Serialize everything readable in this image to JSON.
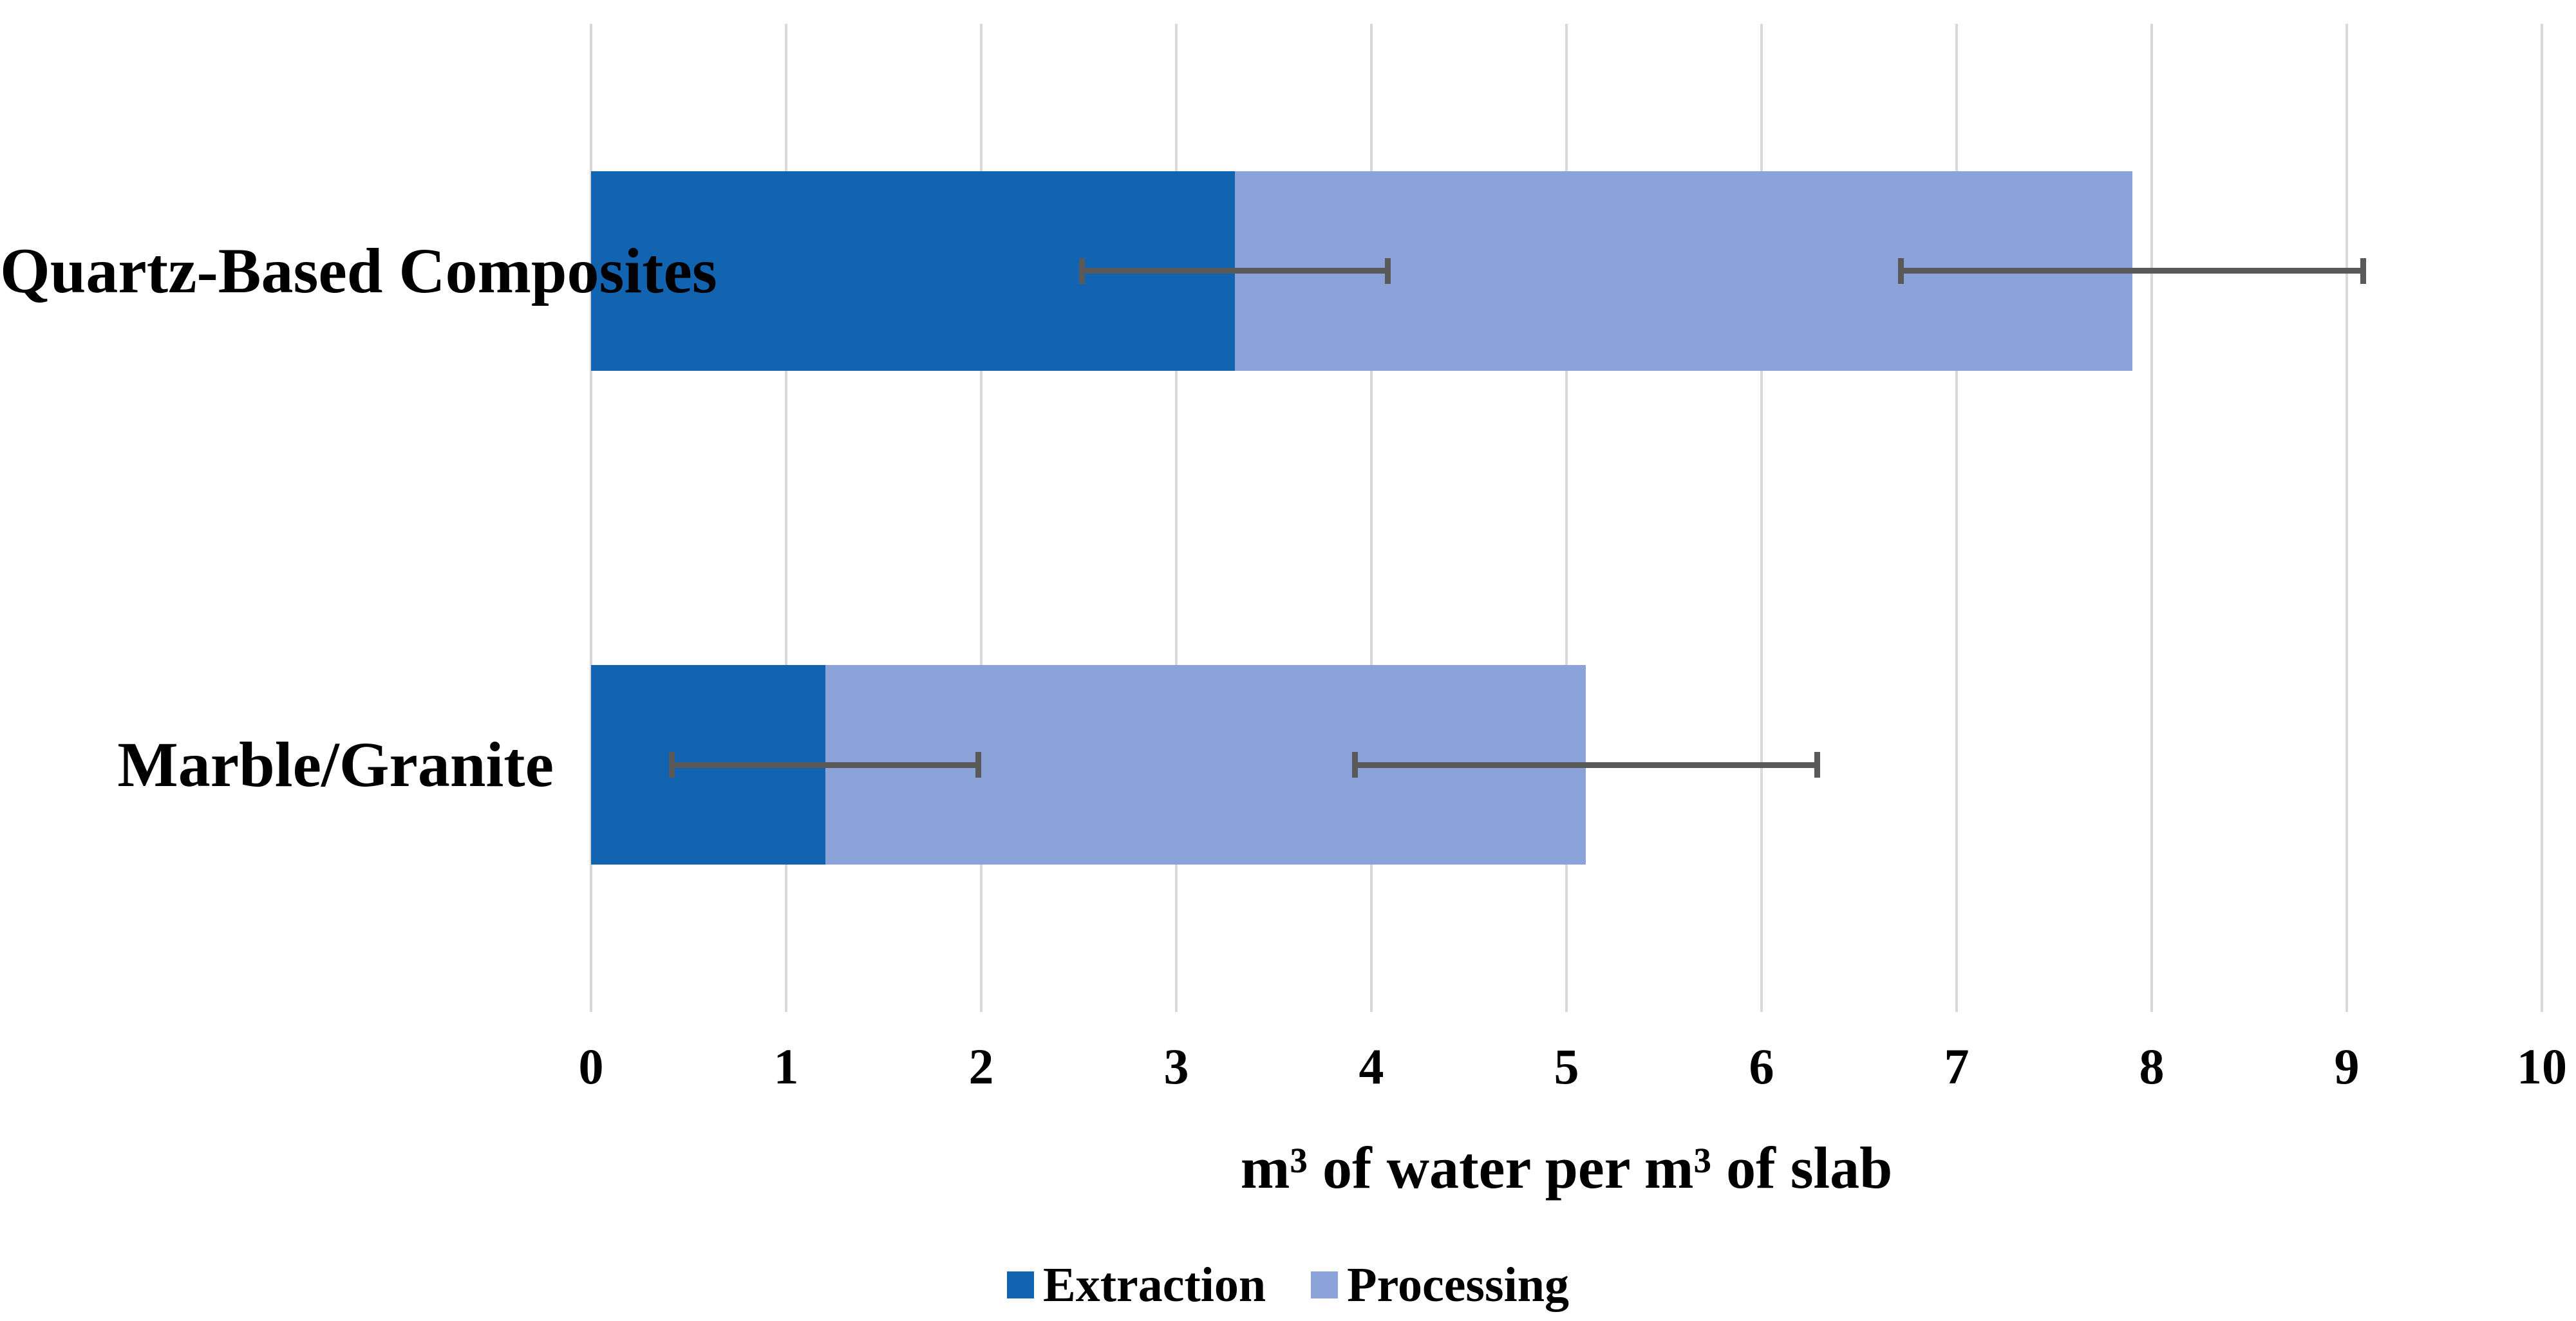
{
  "chart_data": {
    "type": "bar",
    "orientation": "horizontal",
    "stacked": true,
    "title": "",
    "categories": [
      "Quartz-Based Composites",
      "Marble/Granite"
    ],
    "series": [
      {
        "name": "Extraction",
        "color": "#1264B1",
        "values": [
          3.3,
          1.2
        ]
      },
      {
        "name": "Processing",
        "color": "#8BA3D9",
        "values": [
          4.6,
          3.9
        ]
      }
    ],
    "stack_totals": [
      7.9,
      5.1
    ],
    "error_bars": [
      {
        "on": "Extraction segment",
        "center": [
          3.3,
          1.2
        ],
        "low": [
          2.5,
          0.4
        ],
        "high": [
          4.1,
          2.0
        ]
      },
      {
        "on": "Stack total",
        "center": [
          7.9,
          5.1
        ],
        "low": [
          6.7,
          3.9
        ],
        "high": [
          9.1,
          6.3
        ]
      }
    ],
    "xlabel": "m³ of water per m³ of slab",
    "ylabel": "",
    "xlim": [
      0,
      10
    ],
    "xticks": [
      "0",
      "1",
      "2",
      "3",
      "4",
      "5",
      "6",
      "7",
      "8",
      "9",
      "10"
    ],
    "grid": "vertical",
    "legend_position": "bottom-center",
    "colors": {
      "gridline": "#D9D9D9",
      "error_bar": "#595959",
      "text": "#000000",
      "background": "#FFFFFF"
    }
  }
}
